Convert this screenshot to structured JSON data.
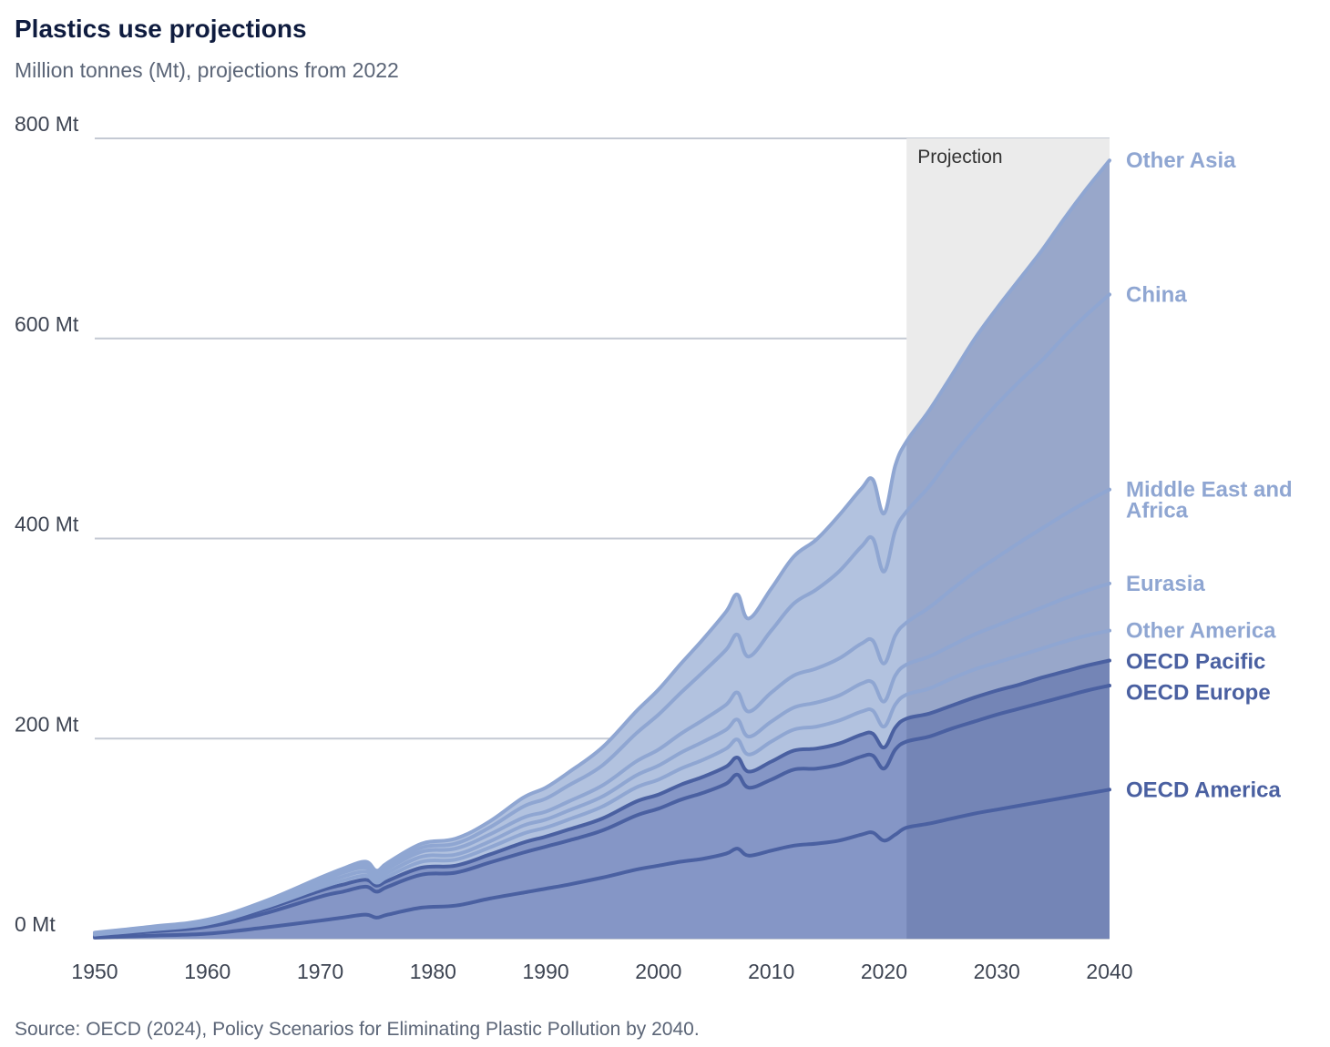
{
  "title": "Plastics use projections",
  "subtitle": "Million tonnes (Mt), projections from 2022",
  "source": "Source: OECD (2024), Policy Scenarios for Eliminating Plastic Pollution by 2040.",
  "colors": {
    "background": "#ffffff",
    "title": "#0f1c3f",
    "text_muted": "#5b6577",
    "grid": "#c4c9d3",
    "projection_shade": "#ebebeb",
    "fill_oecd": "#8596c6",
    "fill_nonoecd": "#b2c2df",
    "line_oecd": "#4a60a1",
    "line_nonoecd": "#8fa6d2",
    "label_oecd": "#4a60a1",
    "label_nonoecd": "#8fa6d2"
  },
  "chart_data": {
    "type": "area",
    "stacked": true,
    "title": "Plastics use projections",
    "subtitle": "Million tonnes (Mt), projections from 2022",
    "xlabel": "",
    "ylabel": "",
    "xlim": [
      1950,
      2040
    ],
    "ylim": [
      0,
      800
    ],
    "y_unit": "Mt",
    "x_ticks": [
      1950,
      1960,
      1970,
      1980,
      1990,
      2000,
      2010,
      2020,
      2030,
      2040
    ],
    "y_ticks": [
      {
        "value": 0,
        "label": "0 Mt"
      },
      {
        "value": 200,
        "label": "200 Mt"
      },
      {
        "value": 400,
        "label": "400 Mt"
      },
      {
        "value": 600,
        "label": "600 Mt"
      },
      {
        "value": 800,
        "label": "800 Mt"
      }
    ],
    "grid": true,
    "legend": "end-labels",
    "projection": {
      "from": 2022,
      "to": 2040,
      "label": "Projection"
    },
    "x": [
      1950,
      1955,
      1960,
      1965,
      1970,
      1972,
      1974,
      1975,
      1976,
      1979,
      1982,
      1985,
      1988,
      1990,
      1992,
      1995,
      1998,
      2000,
      2002,
      2004,
      2006,
      2007,
      2008,
      2010,
      2012,
      2014,
      2016,
      2018,
      2019,
      2020,
      2021,
      2022,
      2024,
      2026,
      2028,
      2030,
      2032,
      2034,
      2036,
      2038,
      2040
    ],
    "series": [
      {
        "name": "OECD America",
        "group": "oecd",
        "label_lines": [
          "OECD America"
        ],
        "values": [
          1,
          3,
          5,
          11,
          18,
          21,
          24,
          21,
          24,
          31,
          33,
          40,
          46,
          50,
          54,
          61,
          69,
          73,
          77,
          80,
          85,
          90,
          83,
          88,
          93,
          95,
          98,
          104,
          106,
          98,
          104,
          111,
          115,
          120,
          125,
          129,
          133,
          137,
          141,
          145,
          149
        ]
      },
      {
        "name": "OECD Europe",
        "group": "oecd",
        "label_lines": [
          "OECD Europe"
        ],
        "values": [
          2,
          4,
          7,
          14,
          24,
          26,
          28,
          26,
          28,
          33,
          33,
          36,
          40,
          42,
          44,
          47,
          54,
          57,
          62,
          66,
          70,
          74,
          68,
          71,
          76,
          75,
          76,
          78,
          77,
          72,
          85,
          86,
          87,
          90,
          92,
          95,
          97,
          99,
          101,
          103,
          104
        ]
      },
      {
        "name": "OECD Pacific",
        "group": "oecd",
        "label_lines": [
          "OECD Pacific"
        ],
        "values": [
          0.5,
          1,
          2,
          4,
          6,
          7,
          7,
          6,
          6,
          7,
          7,
          8,
          10,
          10,
          11,
          12,
          14,
          14,
          15,
          16,
          17,
          17,
          16,
          18,
          19,
          20,
          21,
          22,
          22,
          21,
          22,
          23,
          23,
          23,
          24,
          24,
          24,
          25,
          25,
          25,
          25
        ]
      },
      {
        "name": "Other America",
        "group": "nonoecd",
        "label_lines": [
          "Other America"
        ],
        "values": [
          0.5,
          1,
          1,
          2,
          3,
          4,
          4,
          3,
          4,
          6,
          6,
          7,
          9,
          9,
          10,
          12,
          14,
          15,
          16,
          17,
          18,
          18,
          17,
          20,
          21,
          22,
          23,
          23,
          23,
          21,
          23,
          24,
          25,
          27,
          28,
          28,
          29,
          29,
          30,
          30,
          30
        ]
      },
      {
        "name": "Eurasia",
        "group": "nonoecd",
        "label_lines": [
          "Eurasia"
        ],
        "values": [
          0.5,
          1,
          1,
          2,
          3,
          4,
          4,
          3,
          4,
          5,
          5,
          6,
          8,
          8,
          9,
          10,
          12,
          14,
          16,
          18,
          19,
          20,
          18,
          20,
          22,
          24,
          25,
          28,
          28,
          25,
          29,
          30,
          32,
          33,
          35,
          37,
          39,
          41,
          43,
          45,
          47
        ]
      },
      {
        "name": "Middle East and Africa",
        "group": "nonoecd",
        "label_lines": [
          "Middle East and",
          "Africa"
        ],
        "values": [
          0.5,
          1,
          1,
          2,
          3,
          4,
          4,
          3,
          4,
          5,
          6,
          7,
          8,
          8,
          9,
          11,
          14,
          16,
          19,
          22,
          25,
          27,
          25,
          29,
          32,
          34,
          37,
          40,
          42,
          38,
          40,
          42,
          49,
          56,
          62,
          68,
          74,
          79,
          84,
          89,
          94
        ]
      },
      {
        "name": "China",
        "group": "nonoecd",
        "label_lines": [
          "China"
        ],
        "values": [
          0.5,
          0.5,
          1,
          1,
          2,
          2,
          3,
          3,
          3,
          4,
          5,
          7,
          11,
          13,
          16,
          20,
          28,
          35,
          41,
          48,
          55,
          58,
          55,
          62,
          72,
          79,
          87,
          97,
          102,
          92,
          105,
          111,
          121,
          133,
          143,
          153,
          161,
          168,
          178,
          187,
          195
        ]
      },
      {
        "name": "Other Asia",
        "group": "nonoecd",
        "label_lines": [
          "Other Asia"
        ],
        "values": [
          0.5,
          0.5,
          1,
          1,
          2,
          2,
          3,
          3,
          3,
          4,
          5,
          6,
          9,
          11,
          13,
          18,
          22,
          25,
          29,
          33,
          38,
          40,
          38,
          42,
          47,
          50,
          56,
          58,
          59,
          58,
          65,
          70,
          76,
          81,
          90,
          96,
          102,
          110,
          118,
          126,
          134
        ]
      }
    ]
  }
}
